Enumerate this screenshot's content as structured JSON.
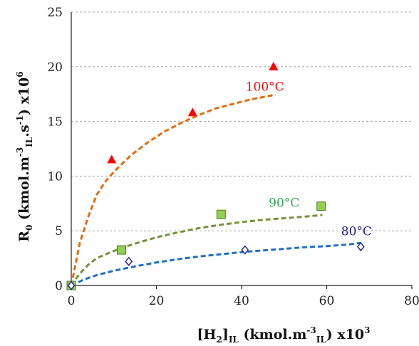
{
  "chart_data": {
    "type": "scatter",
    "xlabel": {
      "base": "[H",
      "sub1": "2",
      "mid": "]",
      "sub2": "IL",
      "rest": " (kmol.m",
      "sup": "-3",
      "sub3": "IL",
      "tail": ") x10",
      "sup2": "3"
    },
    "ylabel": {
      "base": "R",
      "sub1": "0",
      "rest": " (kmol.m",
      "sup": "-3",
      "sub2": "IL",
      "mid": ".s",
      "sup2": "-1",
      "tail": ") x10",
      "sup3": "6"
    },
    "xlim": [
      0,
      80
    ],
    "ylim": [
      0,
      25
    ],
    "xticks": [
      0,
      20,
      40,
      60,
      80
    ],
    "yticks": [
      0,
      5,
      10,
      15,
      20,
      25
    ],
    "grid": "horizontal",
    "series": [
      {
        "name": "100°C",
        "color": "#ff0000",
        "fit_color": "#e46c0a",
        "marker": "triangle",
        "points": [
          [
            0,
            0
          ],
          [
            9.5,
            11.5
          ],
          [
            28.5,
            15.8
          ],
          [
            47.5,
            20.0
          ]
        ],
        "fit": [
          [
            0,
            0
          ],
          [
            2,
            3.9
          ],
          [
            4,
            6.3
          ],
          [
            6,
            8.3
          ],
          [
            8,
            9.5
          ],
          [
            10,
            10.4
          ],
          [
            14,
            11.9
          ],
          [
            18,
            13.1
          ],
          [
            22,
            14.1
          ],
          [
            26,
            14.9
          ],
          [
            30,
            15.6
          ],
          [
            34,
            16.2
          ],
          [
            38,
            16.6
          ],
          [
            42,
            17.0
          ],
          [
            46,
            17.3
          ],
          [
            48,
            17.45
          ]
        ]
      },
      {
        "name": "90°C",
        "color": "#92d050",
        "fit_color": "#77933c",
        "label_color": "#2ea84e",
        "marker": "square",
        "points": [
          [
            0,
            0
          ],
          [
            11.8,
            3.25
          ],
          [
            35.2,
            6.5
          ],
          [
            58.7,
            7.25
          ]
        ],
        "fit": [
          [
            0,
            0
          ],
          [
            2,
            1.1
          ],
          [
            4,
            1.9
          ],
          [
            6,
            2.5
          ],
          [
            9,
            3.0
          ],
          [
            12,
            3.45
          ],
          [
            16,
            3.95
          ],
          [
            20,
            4.4
          ],
          [
            25,
            4.85
          ],
          [
            30,
            5.25
          ],
          [
            35,
            5.55
          ],
          [
            40,
            5.8
          ],
          [
            45,
            6.0
          ],
          [
            50,
            6.15
          ],
          [
            55,
            6.3
          ],
          [
            59,
            6.45
          ]
        ]
      },
      {
        "name": "80°C",
        "color": "#1c1c8c",
        "fit_color": "#1f6fc4",
        "marker": "diamond",
        "points": [
          [
            0,
            0
          ],
          [
            13.5,
            2.2
          ],
          [
            40.8,
            3.25
          ],
          [
            68.0,
            3.55
          ]
        ],
        "fit": [
          [
            0,
            0
          ],
          [
            3,
            0.55
          ],
          [
            6,
            0.95
          ],
          [
            10,
            1.35
          ],
          [
            15,
            1.75
          ],
          [
            20,
            2.1
          ],
          [
            25,
            2.4
          ],
          [
            30,
            2.65
          ],
          [
            35,
            2.85
          ],
          [
            40,
            3.05
          ],
          [
            45,
            3.2
          ],
          [
            50,
            3.35
          ],
          [
            55,
            3.5
          ],
          [
            60,
            3.6
          ],
          [
            65,
            3.75
          ],
          [
            68,
            3.9
          ]
        ]
      }
    ]
  }
}
